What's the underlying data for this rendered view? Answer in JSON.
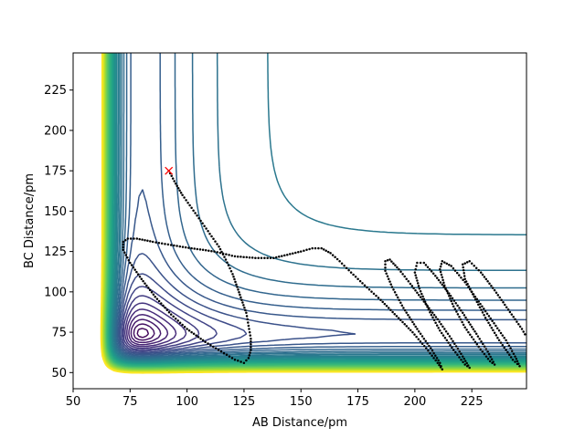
{
  "chart_data": {
    "type": "contour",
    "xlabel": "AB Distance/pm",
    "ylabel": "BC Distance/pm",
    "xlim": [
      50,
      249
    ],
    "ylim": [
      40,
      248
    ],
    "xticks": [
      50,
      75,
      100,
      125,
      150,
      175,
      200,
      225
    ],
    "yticks": [
      50,
      75,
      100,
      125,
      150,
      175,
      200,
      225
    ],
    "colormap": [
      "#440154",
      "#482878",
      "#3e4a89",
      "#31688e",
      "#26828e",
      "#1f9e89",
      "#35b779",
      "#6ece58",
      "#b5de2b",
      "#fde725"
    ],
    "contour_levels": 40,
    "potential_parameters": {
      "well_depth": 1.0,
      "equilibrium_distance_pm": 74,
      "morse_width_pm": 20,
      "wall_inner_distance_pm": 60
    },
    "start_marker": {
      "x": 92,
      "y": 175,
      "symbol": "x",
      "color": "#ff0000"
    },
    "trajectory": {
      "color": "#000000",
      "marker": "dot",
      "points": [
        [
          92,
          175
        ],
        [
          95,
          167
        ],
        [
          98,
          160
        ],
        [
          102,
          152
        ],
        [
          106,
          144
        ],
        [
          110,
          136
        ],
        [
          114,
          128
        ],
        [
          117,
          120
        ],
        [
          120,
          111
        ],
        [
          122,
          103
        ],
        [
          124,
          95
        ],
        [
          126,
          87
        ],
        [
          127,
          79
        ],
        [
          128,
          71
        ],
        [
          128,
          64
        ],
        [
          127,
          59
        ],
        [
          125,
          56
        ],
        [
          121,
          58
        ],
        [
          115,
          63
        ],
        [
          108,
          69
        ],
        [
          100,
          77
        ],
        [
          93,
          86
        ],
        [
          86,
          97
        ],
        [
          80,
          108
        ],
        [
          75,
          118
        ],
        [
          72,
          126
        ],
        [
          72,
          131
        ],
        [
          74,
          133
        ],
        [
          78,
          133
        ],
        [
          85,
          131
        ],
        [
          93,
          129
        ],
        [
          102,
          127
        ],
        [
          112,
          125
        ],
        [
          121,
          122
        ],
        [
          130,
          121
        ],
        [
          138,
          121
        ],
        [
          144,
          123
        ],
        [
          150,
          125
        ],
        [
          155,
          127
        ],
        [
          159,
          127
        ],
        [
          163,
          124
        ],
        [
          167,
          119
        ],
        [
          172,
          112
        ],
        [
          178,
          104
        ],
        [
          185,
          95
        ],
        [
          192,
          85
        ],
        [
          199,
          75
        ],
        [
          205,
          65
        ],
        [
          210,
          56
        ],
        [
          212,
          52
        ],
        [
          211,
          56
        ],
        [
          207,
          65
        ],
        [
          201,
          77
        ],
        [
          195,
          90
        ],
        [
          190,
          103
        ],
        [
          187,
          113
        ],
        [
          187,
          119
        ],
        [
          189,
          120
        ],
        [
          193,
          114
        ],
        [
          198,
          105
        ],
        [
          204,
          94
        ],
        [
          210,
          83
        ],
        [
          216,
          71
        ],
        [
          221,
          60
        ],
        [
          224,
          53
        ],
        [
          222,
          55
        ],
        [
          217,
          64
        ],
        [
          211,
          76
        ],
        [
          206,
          89
        ],
        [
          202,
          102
        ],
        [
          200,
          112
        ],
        [
          201,
          118
        ],
        [
          204,
          118
        ],
        [
          209,
          110
        ],
        [
          215,
          99
        ],
        [
          221,
          87
        ],
        [
          227,
          74
        ],
        [
          232,
          63
        ],
        [
          235,
          55
        ],
        [
          233,
          57
        ],
        [
          228,
          66
        ],
        [
          222,
          78
        ],
        [
          217,
          91
        ],
        [
          213,
          104
        ],
        [
          211,
          114
        ],
        [
          212,
          119
        ],
        [
          216,
          116
        ],
        [
          222,
          106
        ],
        [
          228,
          94
        ],
        [
          234,
          82
        ],
        [
          240,
          70
        ],
        [
          244,
          60
        ],
        [
          246,
          54
        ],
        [
          243,
          58
        ],
        [
          237,
          70
        ],
        [
          231,
          84
        ],
        [
          226,
          97
        ],
        [
          222,
          108
        ],
        [
          221,
          117
        ],
        [
          224,
          119
        ],
        [
          229,
          112
        ],
        [
          235,
          101
        ],
        [
          241,
          89
        ],
        [
          247,
          77
        ],
        [
          249,
          72
        ]
      ]
    }
  }
}
